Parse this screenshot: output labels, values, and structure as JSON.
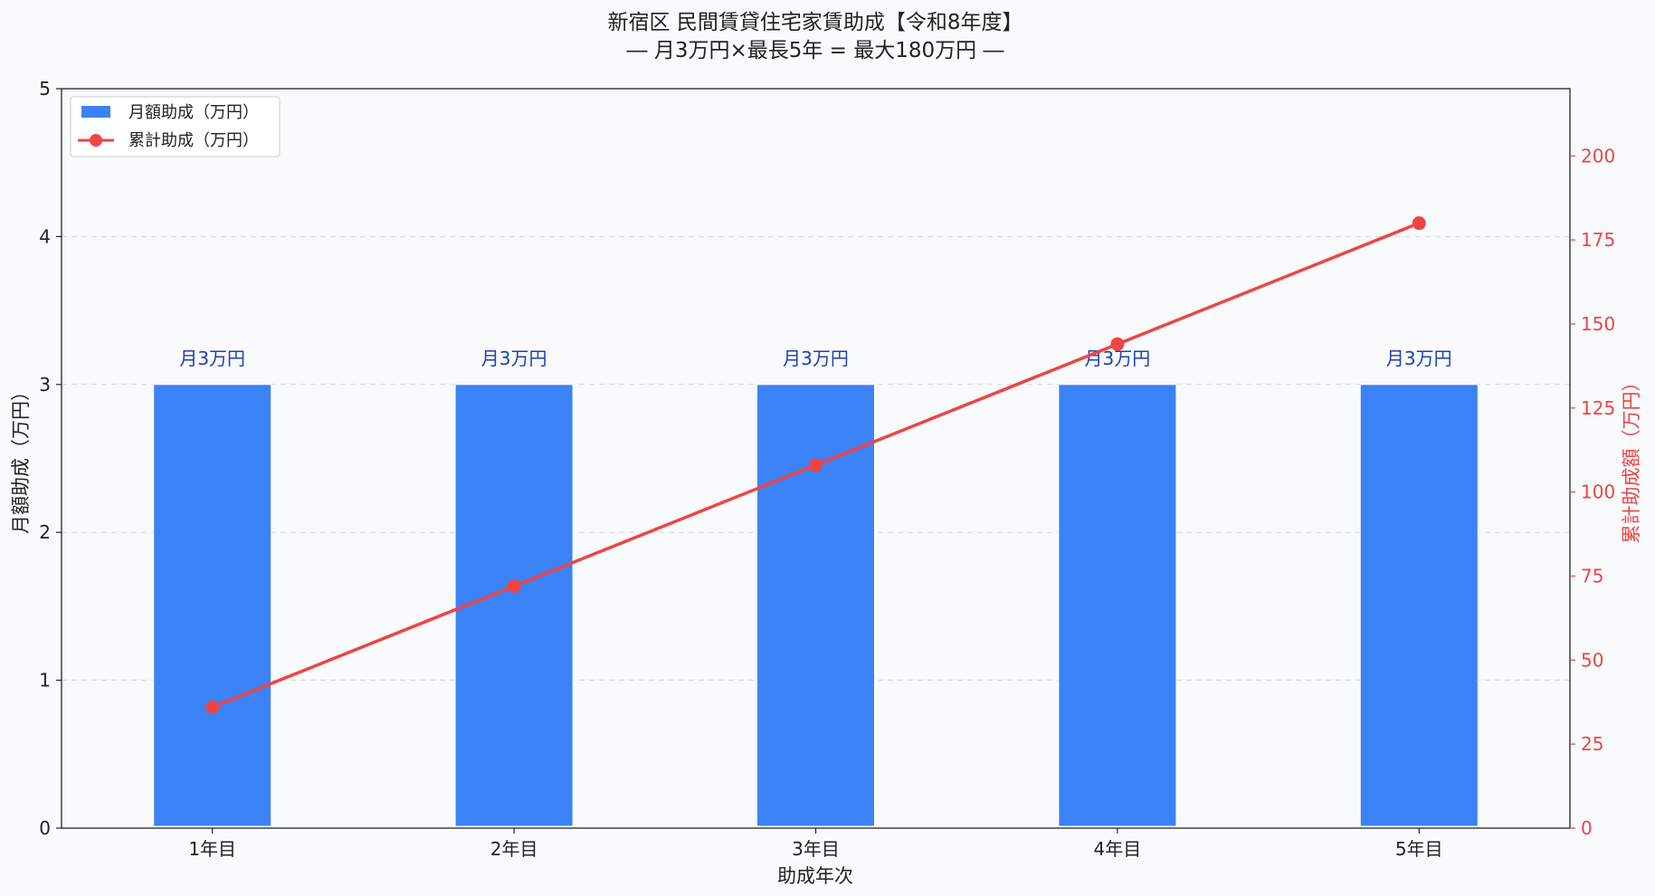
{
  "chart_data": {
    "type": "bar",
    "title": "新宿区 民間賃貸住宅家賃助成【令和8年度】",
    "subtitle": "― 月3万円×最長5年 = 最大180万円 ―",
    "xlabel": "助成年次",
    "ylabel": "月額助成（万円）",
    "y2label": "累計助成額（万円）",
    "categories": [
      "1年目",
      "2年目",
      "3年目",
      "4年目",
      "5年目"
    ],
    "series": [
      {
        "name": "月額助成（万円）",
        "type": "bar",
        "axis": "left",
        "color": "#3b82f6",
        "values": [
          3,
          3,
          3,
          3,
          3
        ],
        "labels": [
          "月3万円",
          "月3万円",
          "月3万円",
          "月3万円",
          "月3万円"
        ]
      },
      {
        "name": "累計助成（万円）",
        "type": "line",
        "axis": "right",
        "color": "#ef4444",
        "values": [
          36,
          72,
          108,
          144,
          180
        ]
      }
    ],
    "ylim": [
      0,
      5
    ],
    "y2lim": [
      0,
      220
    ],
    "yticks": [
      0,
      1,
      2,
      3,
      4,
      5
    ],
    "y2ticks": [
      0,
      25,
      50,
      75,
      100,
      125,
      150,
      175,
      200
    ],
    "grid": "horizontal-dashed",
    "legend_position": "top-left"
  }
}
